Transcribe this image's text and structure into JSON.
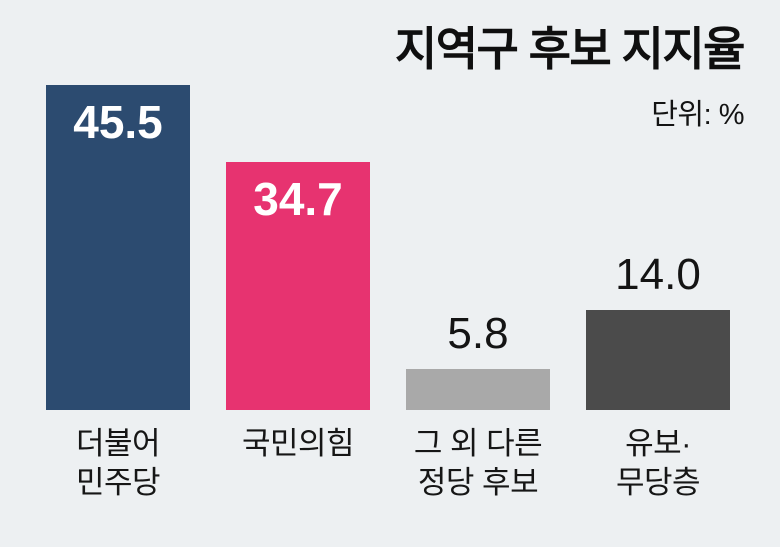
{
  "chart_data": {
    "type": "bar",
    "title": "지역구 후보 지지율",
    "unit_label": "단위: %",
    "categories": [
      "더불어 민주당",
      "국민의힘",
      "그 외 다른 정당 후보",
      "유보·무당층"
    ],
    "values": [
      45.5,
      34.7,
      5.8,
      14.0
    ],
    "ylim": [
      0,
      50
    ],
    "grid": false,
    "legend": false,
    "value_labels_shown": true
  },
  "header": {
    "title": "지역구 후보 지지율",
    "unit": "단위: %"
  },
  "bars": [
    {
      "name": "democratic-party",
      "value": 45.5,
      "value_display": "45.5",
      "color": "#2c4b70",
      "value_position": "inside",
      "label_line1": "더불어",
      "label_line2": "민주당"
    },
    {
      "name": "people-power-party",
      "value": 34.7,
      "value_display": "34.7",
      "color": "#e73370",
      "value_position": "inside",
      "label_line1": "국민의힘",
      "label_line2": ""
    },
    {
      "name": "other-party-candidates",
      "value": 5.8,
      "value_display": "5.8",
      "color": "#a9a9a9",
      "value_position": "above",
      "label_line1": "그 외 다른",
      "label_line2": "정당 후보"
    },
    {
      "name": "undecided-nonpartisan",
      "value": 14.0,
      "value_display": "14.0",
      "color": "#4b4b4b",
      "value_position": "above",
      "label_line1": "유보·",
      "label_line2": "무당층"
    }
  ],
  "colors": {
    "background": "#edf0f2",
    "bar_democratic": "#2c4b70",
    "bar_people_power": "#e73370",
    "bar_other": "#a9a9a9",
    "bar_undecided": "#4b4b4b",
    "text": "#141414",
    "value_inside_text": "#ffffff"
  }
}
